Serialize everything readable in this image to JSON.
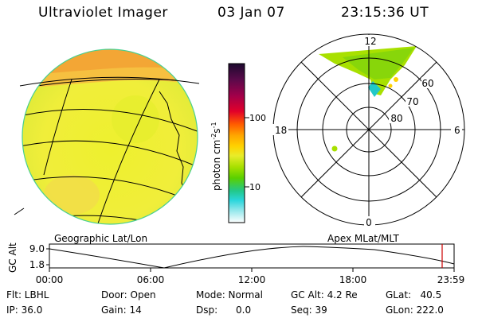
{
  "header": {
    "title": "Ultraviolet Imager",
    "date": "03 Jan 07",
    "time": "23:15:36 UT"
  },
  "colorbar": {
    "unit_label": "photon cm",
    "unit_exp1": "-2",
    "unit_s": "s",
    "unit_exp2": "-1",
    "ticks": [
      "100",
      "10"
    ],
    "colors": [
      "#1c0a2e",
      "#5a0a4a",
      "#a0004a",
      "#e2002a",
      "#ff5a00",
      "#ffa400",
      "#ffd200",
      "#e8ec2a",
      "#a8e000",
      "#5ad000",
      "#22c88a",
      "#2ad6dc",
      "#8ee6ea",
      "#dcf0f2",
      "#ffffff"
    ]
  },
  "geo_panel": {
    "label": "Geographic Lat/Lon"
  },
  "polar_panel": {
    "label": "Apex MLat/MLT",
    "mlt_labels": {
      "top": "12",
      "left": "18",
      "right": "6",
      "bottom": "0"
    },
    "lat_labels": [
      "60",
      "70",
      "80"
    ]
  },
  "timeline": {
    "ylabel": "GC Alt",
    "yticks": [
      "9.0",
      "1.8"
    ],
    "xticks": [
      "00:00",
      "06:00",
      "12:00",
      "18:00",
      "23:59"
    ],
    "current_marker_color": "#cc0000"
  },
  "info": {
    "filter": "Flt: LBHL",
    "ip": "IP: 36.0",
    "door": "Door: Open",
    "gain": "Gain: 14",
    "mode": "Mode: Normal",
    "dsp": "Dsp:      0.0",
    "gc_alt": "GC Alt: 4.2 Re",
    "seq": "Seq: 39",
    "glat": "GLat:   40.5",
    "glon": "GLon: 222.0"
  }
}
